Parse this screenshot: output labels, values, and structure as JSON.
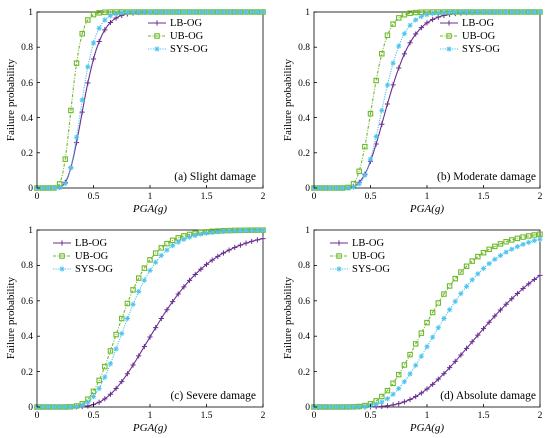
{
  "colors": {
    "LB-OG": "#6a2d91",
    "UB-OG": "#6fb92c",
    "SYS-OG": "#4cc4ef",
    "axis": "#000000"
  },
  "chart_data": [
    {
      "type": "line",
      "title": "(a) Slight damage",
      "xlabel": "PGA(g)",
      "ylabel": "Failure probability",
      "xlim": [
        0,
        2
      ],
      "ylim": [
        0,
        1
      ],
      "xticks": [
        "0",
        "0.5",
        "1",
        "1.5",
        "2"
      ],
      "yticks": [
        "0",
        "0.2",
        "0.4",
        "0.6",
        "0.8",
        "1"
      ],
      "legend": "top-right",
      "grid": false,
      "series": [
        {
          "name": "LB-OG",
          "marker": "plus",
          "color": "#6a2d91",
          "median": 0.42,
          "beta": 0.28
        },
        {
          "name": "UB-OG",
          "marker": "square",
          "color": "#6fb92c",
          "median": 0.31,
          "beta": 0.22
        },
        {
          "name": "SYS-OG",
          "marker": "star",
          "color": "#4cc4ef",
          "median": 0.4,
          "beta": 0.24
        }
      ]
    },
    {
      "type": "line",
      "title": "(b) Moderate damage",
      "xlabel": "PGA(g)",
      "ylabel": "Failure probability",
      "xlim": [
        0,
        2
      ],
      "ylim": [
        0,
        1
      ],
      "xticks": [
        "0",
        "0.5",
        "1",
        "1.5",
        "2"
      ],
      "yticks": [
        "0",
        "0.2",
        "0.4",
        "0.6",
        "0.8",
        "1"
      ],
      "legend": "top-right",
      "grid": false,
      "series": [
        {
          "name": "LB-OG",
          "marker": "plus",
          "color": "#6a2d91",
          "median": 0.66,
          "beta": 0.27
        },
        {
          "name": "UB-OG",
          "marker": "square",
          "color": "#6fb92c",
          "median": 0.52,
          "beta": 0.2
        },
        {
          "name": "SYS-OG",
          "marker": "star",
          "color": "#4cc4ef",
          "median": 0.62,
          "beta": 0.22
        }
      ]
    },
    {
      "type": "line",
      "title": "(c) Severe damage",
      "xlabel": "PGA(g)",
      "ylabel": "Failure probability",
      "xlim": [
        0,
        2
      ],
      "ylim": [
        0,
        1
      ],
      "xticks": [
        "0",
        "0.5",
        "1",
        "1.5",
        "2"
      ],
      "yticks": [
        "0",
        "0.2",
        "0.4",
        "0.6",
        "0.8",
        "1"
      ],
      "legend": "top-left",
      "grid": false,
      "series": [
        {
          "name": "LB-OG",
          "marker": "plus",
          "color": "#6a2d91",
          "median": 1.1,
          "beta": 0.36
        },
        {
          "name": "UB-OG",
          "marker": "square",
          "color": "#6fb92c",
          "median": 0.75,
          "beta": 0.3
        },
        {
          "name": "SYS-OG",
          "marker": "star",
          "color": "#4cc4ef",
          "median": 0.8,
          "beta": 0.3
        }
      ]
    },
    {
      "type": "line",
      "title": "(d) Absolute damage",
      "xlabel": "PGA(g)",
      "ylabel": "Failure probability",
      "xlim": [
        0,
        2
      ],
      "ylim": [
        0,
        1
      ],
      "xticks": [
        "0",
        "0.5",
        "1",
        "1.5",
        "2"
      ],
      "yticks": [
        "0",
        "0.2",
        "0.4",
        "0.6",
        "0.8",
        "1"
      ],
      "legend": "top-left",
      "grid": false,
      "series": [
        {
          "name": "LB-OG",
          "marker": "plus",
          "color": "#6a2d91",
          "median": 1.58,
          "beta": 0.36
        },
        {
          "name": "UB-OG",
          "marker": "square",
          "color": "#6fb92c",
          "median": 1.02,
          "beta": 0.34
        },
        {
          "name": "SYS-OG",
          "marker": "star",
          "color": "#4cc4ef",
          "median": 1.15,
          "beta": 0.34
        }
      ]
    }
  ]
}
